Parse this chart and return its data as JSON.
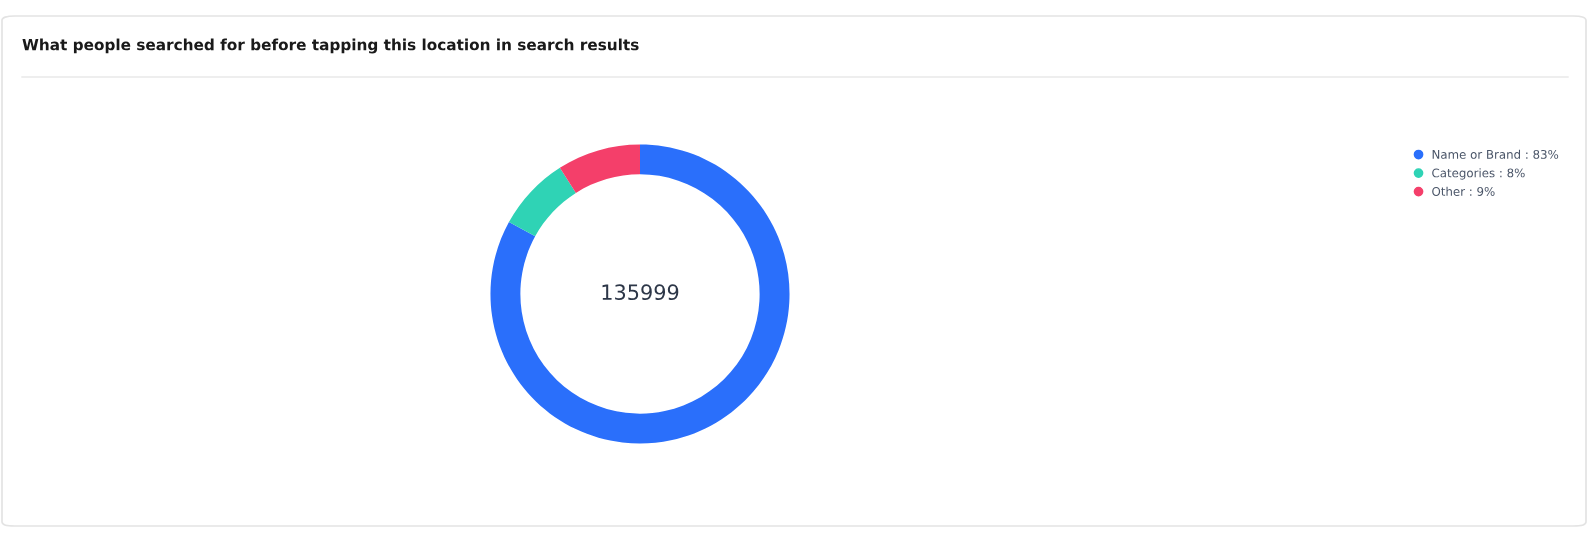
{
  "chart_data": {
    "type": "donut",
    "title": "What people searched for before tapping this location in search results",
    "categories": [
      "Name or Brand",
      "Categories",
      "Other"
    ],
    "values": [
      83,
      8,
      9
    ],
    "value_labels": [
      "83%",
      "8%",
      "9%"
    ],
    "colors": [
      "#2a6ffb",
      "#2fd3b5",
      "#f43f6a"
    ],
    "annotations": [
      "135999"
    ],
    "legend": "top right"
  }
}
